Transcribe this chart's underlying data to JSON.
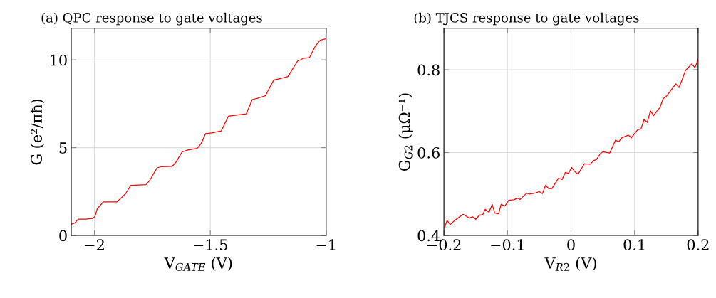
{
  "chart_data": [
    {
      "type": "line",
      "title": "(a) QPC response to gate voltages",
      "xlabel": "V$_{GATE}$ (V)",
      "ylabel": "G (e²/πħ)",
      "xlim": [
        -2.1,
        -1
      ],
      "ylim": [
        0,
        11.8
      ],
      "xticks": [
        {
          "value": -2,
          "label": "−2"
        },
        {
          "value": -1.5,
          "label": "−1.5"
        },
        {
          "value": -1,
          "label": "−1"
        }
      ],
      "yticks": [
        0,
        5,
        10
      ],
      "grid": true,
      "series": [
        {
          "color": "#ff0000",
          "x": [
            -2.099,
            -2.085,
            -2.07,
            -2.039,
            -2.008,
            -1.998,
            -1.988,
            -1.962,
            -1.903,
            -1.866,
            -1.843,
            -1.777,
            -1.761,
            -1.73,
            -1.71,
            -1.664,
            -1.648,
            -1.622,
            -1.597,
            -1.556,
            -1.54,
            -1.52,
            -1.494,
            -1.453,
            -1.422,
            -1.401,
            -1.345,
            -1.319,
            -1.293,
            -1.262,
            -1.226,
            -1.206,
            -1.165,
            -1.123,
            -1.095,
            -1.072,
            -1.047,
            -1.026,
            -1.0
          ],
          "values": [
            0.64,
            0.7,
            0.93,
            0.93,
            0.97,
            1.07,
            1.51,
            1.91,
            1.91,
            2.37,
            2.85,
            2.89,
            3.14,
            3.85,
            3.92,
            3.94,
            4.18,
            4.75,
            4.87,
            4.96,
            5.23,
            5.8,
            5.84,
            5.95,
            6.79,
            6.83,
            6.92,
            7.74,
            7.83,
            7.96,
            8.86,
            8.91,
            9.05,
            9.94,
            10.1,
            10.13,
            10.78,
            11.12,
            11.21
          ]
        }
      ]
    },
    {
      "type": "line",
      "title": "(b) TJCS response to gate voltages",
      "xlabel": "V$_{R2}$ (V)",
      "ylabel": "G$_{G2}$ (μΩ⁻¹)",
      "xlim": [
        -0.2,
        0.2
      ],
      "ylim": [
        0.4,
        0.9
      ],
      "xticks": [
        {
          "value": -0.2,
          "label": "−0.2"
        },
        {
          "value": -0.1,
          "label": "−0.1"
        },
        0,
        0.1,
        0.2
      ],
      "yticks": [
        0.4,
        0.6,
        0.8
      ],
      "grid": true,
      "series": [
        {
          "color": "#ff0000",
          "x": [
            -0.199,
            -0.195,
            -0.19,
            -0.184,
            -0.17,
            -0.16,
            -0.155,
            -0.15,
            -0.144,
            -0.139,
            -0.135,
            -0.129,
            -0.124,
            -0.12,
            -0.114,
            -0.11,
            -0.104,
            -0.098,
            -0.09,
            -0.084,
            -0.08,
            -0.07,
            -0.065,
            -0.055,
            -0.05,
            -0.045,
            -0.04,
            -0.035,
            -0.03,
            -0.02,
            -0.014,
            -0.009,
            -0.004,
            0.001,
            0.006,
            0.011,
            0.021,
            0.03,
            0.036,
            0.04,
            0.046,
            0.05,
            0.061,
            0.07,
            0.075,
            0.08,
            0.09,
            0.095,
            0.101,
            0.105,
            0.11,
            0.115,
            0.12,
            0.125,
            0.13,
            0.135,
            0.14,
            0.145,
            0.15,
            0.165,
            0.17,
            0.175,
            0.18,
            0.19,
            0.195,
            0.2
          ],
          "values": [
            0.419,
            0.436,
            0.426,
            0.435,
            0.451,
            0.442,
            0.445,
            0.439,
            0.449,
            0.45,
            0.463,
            0.456,
            0.475,
            0.454,
            0.452,
            0.475,
            0.471,
            0.485,
            0.486,
            0.49,
            0.487,
            0.502,
            0.5,
            0.503,
            0.506,
            0.501,
            0.521,
            0.513,
            0.513,
            0.538,
            0.535,
            0.552,
            0.55,
            0.564,
            0.554,
            0.548,
            0.573,
            0.572,
            0.581,
            0.583,
            0.597,
            0.602,
            0.599,
            0.63,
            0.626,
            0.636,
            0.642,
            0.636,
            0.648,
            0.655,
            0.657,
            0.68,
            0.673,
            0.701,
            0.689,
            0.7,
            0.709,
            0.73,
            0.736,
            0.766,
            0.757,
            0.777,
            0.798,
            0.814,
            0.805,
            0.825
          ]
        }
      ]
    }
  ]
}
